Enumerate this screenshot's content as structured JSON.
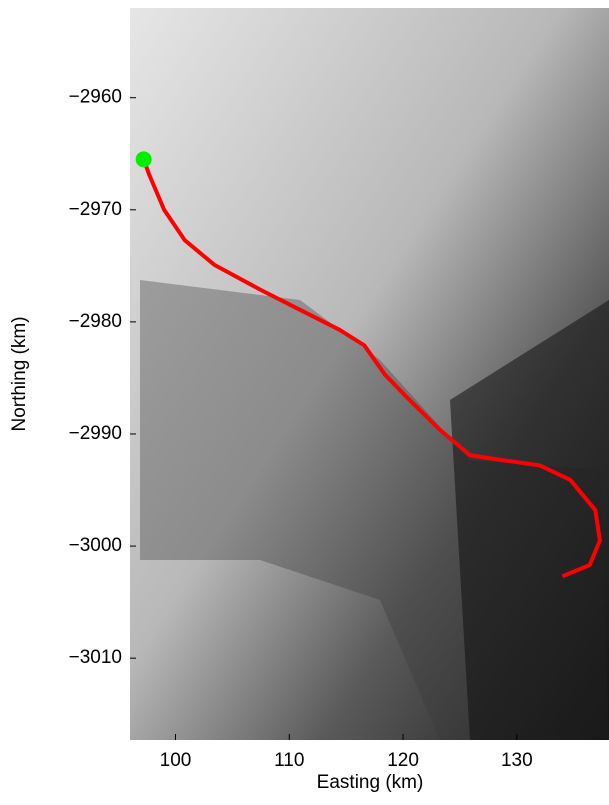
{
  "chart_data": {
    "type": "line",
    "x_label": "Easting (km)",
    "y_label": "Northing (km)",
    "xlim": [
      96,
      138.1
    ],
    "ylim": [
      -3017.3,
      -2952
    ],
    "xticks": [
      100,
      110,
      120,
      130
    ],
    "yticks": [
      {
        "value": -2960,
        "label": "−2960"
      },
      {
        "value": -2970,
        "label": "−2970"
      },
      {
        "value": -2980,
        "label": "−2980"
      },
      {
        "value": -2990,
        "label": "−2990"
      },
      {
        "value": -3000,
        "label": "−3000"
      },
      {
        "value": -3010,
        "label": "−3010"
      }
    ],
    "series": [
      {
        "color": "#ff0000",
        "style": "line",
        "x": [
          97.2,
          97.7,
          99.0,
          100.8,
          103.4,
          107.4,
          110.9,
          114.4,
          116.6,
          118.4,
          120.6,
          123.2,
          125.9,
          128.5,
          132.0,
          134.7,
          136.9,
          137.3,
          136.4,
          134.0
        ],
        "values": [
          -2965.5,
          -2966.9,
          -2970,
          -2972.7,
          -2974.9,
          -2977.1,
          -2978.9,
          -2980.7,
          -2982.1,
          -2984.7,
          -2987,
          -2989.6,
          -2991.9,
          -2992.3,
          -2992.8,
          -2994.1,
          -2996.8,
          -2999.5,
          -3001.7,
          -3002.7
        ]
      },
      {
        "color": "#00ee00",
        "style": "marker",
        "x": [
          97.2
        ],
        "values": [
          -2965.5
        ]
      }
    ]
  }
}
